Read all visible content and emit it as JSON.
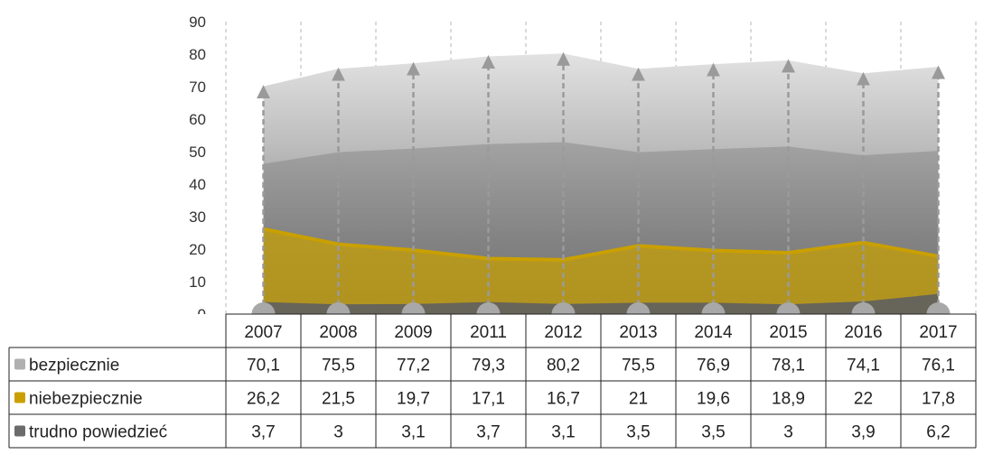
{
  "chart_data": {
    "type": "area",
    "title_visible_fragment": "",
    "categories": [
      "2007",
      "2008",
      "2009",
      "2011",
      "2012",
      "2013",
      "2014",
      "2015",
      "2016",
      "2017"
    ],
    "series": [
      {
        "name": "bezpiecznie",
        "values": [
          70.1,
          75.5,
          77.2,
          79.3,
          80.2,
          75.5,
          76.9,
          78.1,
          74.1,
          76.1
        ],
        "color": "#9a9a9a"
      },
      {
        "name": "niebezpiecznie",
        "values": [
          26.2,
          21.5,
          19.7,
          17.1,
          16.7,
          21,
          19.6,
          18.9,
          22,
          17.8
        ],
        "color": "#c9a000"
      },
      {
        "name": "trudno powiedzieć",
        "values": [
          3.7,
          3,
          3.1,
          3.7,
          3.1,
          3.5,
          3.5,
          3,
          3.9,
          6.2
        ],
        "color": "#666666"
      }
    ],
    "table_labels": [
      "70,1",
      "75,5",
      "77,2",
      "79,3",
      "80,2",
      "75,5",
      "76,9",
      "78,1",
      "74,1",
      "76,1",
      "26,2",
      "21,5",
      "19,7",
      "17,1",
      "16,7",
      "21",
      "19,6",
      "18,9",
      "22",
      "17,8",
      "3,7",
      "3",
      "3,1",
      "3,7",
      "3,1",
      "3,5",
      "3,5",
      "3",
      "3,9",
      "6,2"
    ],
    "yticks": [
      0,
      10,
      20,
      30,
      40,
      50,
      60,
      70,
      80,
      90
    ],
    "ylim": [
      0,
      90
    ],
    "grid": "vertical dashed",
    "legend": "data-table"
  }
}
